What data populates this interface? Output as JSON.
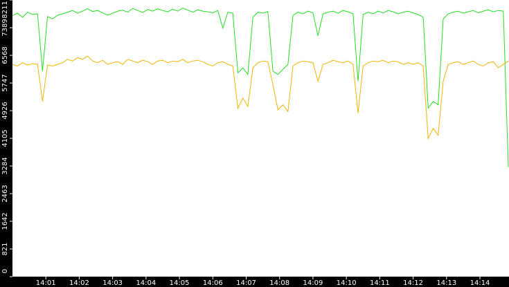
{
  "chart_data": {
    "type": "line",
    "x": [
      0,
      0.15,
      0.3,
      0.45,
      0.6,
      0.75,
      0.9,
      1.05,
      1.2,
      1.35,
      1.5,
      1.65,
      1.8,
      1.95,
      2.1,
      2.25,
      2.4,
      2.55,
      2.7,
      2.85,
      3,
      3.15,
      3.3,
      3.45,
      3.6,
      3.75,
      3.9,
      4.05,
      4.2,
      4.35,
      4.5,
      4.65,
      4.8,
      4.95,
      5.1,
      5.25,
      5.4,
      5.55,
      5.7,
      5.85,
      6,
      6.15,
      6.3,
      6.45,
      6.6,
      6.75,
      6.9,
      7.05,
      7.2,
      7.35,
      7.5,
      7.65,
      7.8,
      7.95,
      8.1,
      8.25,
      8.4,
      8.55,
      8.7,
      8.85,
      9,
      9.15,
      9.3,
      9.45,
      9.6,
      9.75,
      9.9,
      10.05,
      10.2,
      10.35,
      10.5,
      10.65,
      10.8,
      10.95,
      11.1,
      11.25,
      11.4,
      11.55,
      11.7,
      11.85,
      12,
      12.15,
      12.3,
      12.45,
      12.6,
      12.75,
      12.9,
      13.05,
      13.2,
      13.35,
      13.5,
      13.65,
      13.8,
      13.95,
      14.1,
      14.25,
      14.4,
      14.55,
      14.7,
      14.85
    ],
    "series": [
      {
        "color": "#22dd22",
        "values": [
          7750,
          7820,
          7700,
          7850,
          7780,
          7800,
          6100,
          7720,
          7650,
          7760,
          7800,
          7850,
          7900,
          7820,
          7880,
          7950,
          7870,
          7900,
          7830,
          7760,
          7820,
          7880,
          7910,
          7850,
          7960,
          7900,
          7840,
          7930,
          7880,
          7950,
          7900,
          7860,
          7940,
          7880,
          7970,
          7910,
          7850,
          7920,
          7880,
          7860,
          7830,
          7900,
          7380,
          7850,
          7820,
          6050,
          6200,
          6000,
          7700,
          7850,
          7820,
          7870,
          6100,
          6000,
          6150,
          6300,
          7750,
          7850,
          7800,
          7880,
          7830,
          7150,
          7800,
          7850,
          7880,
          7820,
          7900,
          7860,
          7800,
          5800,
          7780,
          7850,
          7800,
          7880,
          7830,
          7900,
          7860,
          7800,
          7850,
          7880,
          7830,
          7780,
          7700,
          5000,
          5200,
          5100,
          7650,
          7800,
          7850,
          7880,
          7820,
          7860,
          7900,
          7830,
          7880,
          7920,
          7860,
          7900,
          7880,
          3250
        ]
      },
      {
        "color": "#f0b400",
        "values": [
          6300,
          6250,
          6350,
          6280,
          6320,
          6300,
          5200,
          6280,
          6250,
          6300,
          6350,
          6450,
          6400,
          6500,
          6450,
          6550,
          6400,
          6350,
          6420,
          6300,
          6350,
          6380,
          6300,
          6450,
          6400,
          6350,
          6420,
          6380,
          6300,
          6400,
          6420,
          6350,
          6400,
          6380,
          6450,
          6350,
          6400,
          6420,
          6380,
          6300,
          6250,
          6350,
          6380,
          6300,
          6250,
          5000,
          5300,
          5050,
          6200,
          6350,
          6400,
          6380,
          5700,
          4950,
          5100,
          4900,
          6250,
          6350,
          6400,
          6380,
          6350,
          5800,
          6300,
          6350,
          6420,
          6380,
          6350,
          6400,
          6300,
          4850,
          6250,
          6350,
          6400,
          6380,
          6420,
          6350,
          6400,
          6380,
          6300,
          6350,
          6300,
          6350,
          6250,
          4100,
          4400,
          4200,
          5800,
          6300,
          6350,
          6380,
          6300,
          6350,
          6400,
          6300,
          6250,
          6350,
          6380,
          6200,
          6300,
          6400
        ]
      }
    ],
    "xlim": [
      0,
      14.85
    ],
    "xticks": [
      {
        "value": 1,
        "label": "14:01"
      },
      {
        "value": 2,
        "label": "14:02"
      },
      {
        "value": 3,
        "label": "14:03"
      },
      {
        "value": 4,
        "label": "14:04"
      },
      {
        "value": 5,
        "label": "14:05"
      },
      {
        "value": 6,
        "label": "14:06"
      },
      {
        "value": 7,
        "label": "14:07"
      },
      {
        "value": 8,
        "label": "14:08"
      },
      {
        "value": 9,
        "label": "14:09"
      },
      {
        "value": 10,
        "label": "14:10"
      },
      {
        "value": 11,
        "label": "14:11"
      },
      {
        "value": 12,
        "label": "14:12"
      },
      {
        "value": 13,
        "label": "14:13"
      },
      {
        "value": 14,
        "label": "14:14"
      }
    ],
    "ylim": [
      0,
      8211
    ],
    "yticks": [
      0,
      821,
      1642,
      2463,
      3284,
      4105,
      4926,
      5747,
      6568,
      7389,
      8211
    ]
  }
}
